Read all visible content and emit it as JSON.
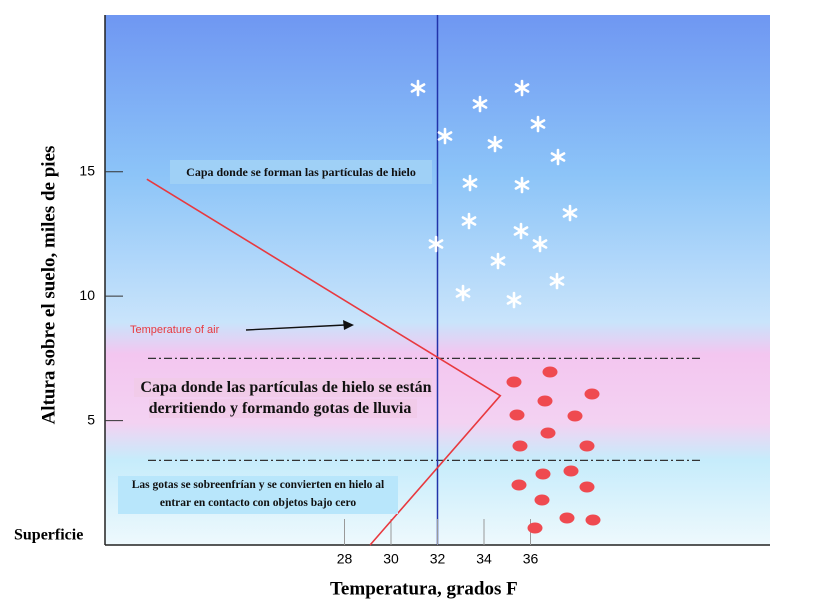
{
  "chart_data": {
    "type": "line",
    "xlabel": "Temperatura, grados F",
    "ylabel": "Altura sobre el suelo, miles de pies",
    "surface_label": "Superficie",
    "xlim": [
      17.7,
      46.3
    ],
    "ylim": [
      0,
      21.3
    ],
    "xticks": [
      28,
      30,
      32,
      34,
      36
    ],
    "yticks": [
      5,
      10,
      15
    ],
    "freezing_x": 32,
    "layer_bounds": [
      7.5,
      3.4
    ],
    "series": [
      {
        "name": "Temperature of air",
        "color": "#e8393f",
        "x": [
          19.5,
          34.7,
          29.1
        ],
        "values": [
          14.7,
          6.0,
          0
        ]
      }
    ],
    "annotations": [
      "Capa donde se forman las partículas de hielo",
      "Capa donde las partículas de hielo se están derritiendo y formando gotas de lluvia",
      "Las gotas se sobreenfrían y se convierten en hielo al entrar en contacto con objetos bajo cero"
    ]
  }
}
